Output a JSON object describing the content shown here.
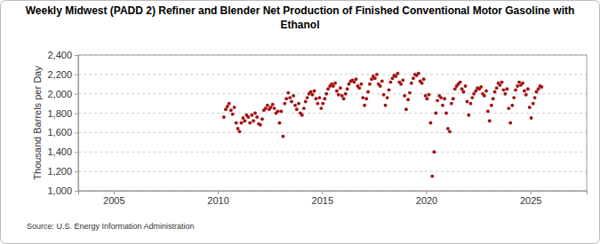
{
  "chart_data": {
    "type": "scatter",
    "title": "Weekly Midwest (PADD 2) Refiner and Blender Net Production of Finished Conventional Motor Gasoline with Ethanol",
    "y_label": "Thousand Barrels per Day",
    "source": "Source: U.S. Energy Information Administration",
    "color": "#a31515",
    "marker": "circle",
    "grid": true,
    "xlim": [
      2003.3,
      2027.7
    ],
    "xticks": [
      2005,
      2010,
      2015,
      2020,
      2025
    ],
    "ylim": [
      1000,
      2400
    ],
    "yticks": [
      {
        "value": 1000,
        "label": "1,000"
      },
      {
        "value": 1200,
        "label": "1,200"
      },
      {
        "value": 1400,
        "label": "1,400"
      },
      {
        "value": 1600,
        "label": "1,600"
      },
      {
        "value": 1800,
        "label": "1,800"
      },
      {
        "value": 2000,
        "label": "2,000"
      },
      {
        "value": 2200,
        "label": "2,200"
      },
      {
        "value": 2400,
        "label": "2,400"
      }
    ],
    "x": [
      2010.29,
      2010.38,
      2010.46,
      2010.54,
      2010.63,
      2010.71,
      2010.79,
      2010.88,
      2010.96,
      2011.04,
      2011.13,
      2011.21,
      2011.29,
      2011.38,
      2011.46,
      2011.54,
      2011.63,
      2011.71,
      2011.79,
      2011.88,
      2011.96,
      2012.04,
      2012.13,
      2012.21,
      2012.29,
      2012.38,
      2012.46,
      2012.54,
      2012.63,
      2012.71,
      2012.79,
      2012.88,
      2012.96,
      2013.04,
      2013.13,
      2013.21,
      2013.29,
      2013.38,
      2013.46,
      2013.54,
      2013.63,
      2013.71,
      2013.79,
      2013.88,
      2013.96,
      2014.04,
      2014.13,
      2014.21,
      2014.29,
      2014.38,
      2014.46,
      2014.54,
      2014.63,
      2014.71,
      2014.79,
      2014.88,
      2014.96,
      2015.04,
      2015.13,
      2015.21,
      2015.29,
      2015.38,
      2015.46,
      2015.54,
      2015.63,
      2015.71,
      2015.79,
      2015.88,
      2015.96,
      2016.04,
      2016.13,
      2016.21,
      2016.29,
      2016.38,
      2016.46,
      2016.54,
      2016.63,
      2016.71,
      2016.79,
      2016.88,
      2016.96,
      2017.04,
      2017.13,
      2017.21,
      2017.29,
      2017.38,
      2017.46,
      2017.54,
      2017.63,
      2017.71,
      2017.79,
      2017.88,
      2017.96,
      2018.04,
      2018.13,
      2018.21,
      2018.29,
      2018.38,
      2018.46,
      2018.54,
      2018.63,
      2018.71,
      2018.79,
      2018.88,
      2018.96,
      2019.04,
      2019.13,
      2019.21,
      2019.29,
      2019.38,
      2019.46,
      2019.54,
      2019.63,
      2019.71,
      2019.79,
      2019.88,
      2019.96,
      2020.04,
      2020.13,
      2020.21,
      2020.29,
      2020.38,
      2020.46,
      2020.54,
      2020.63,
      2020.71,
      2020.79,
      2020.88,
      2020.96,
      2021.04,
      2021.13,
      2021.21,
      2021.29,
      2021.38,
      2021.46,
      2021.54,
      2021.63,
      2021.71,
      2021.79,
      2021.88,
      2021.96,
      2022.04,
      2022.13,
      2022.21,
      2022.29,
      2022.38,
      2022.46,
      2022.54,
      2022.63,
      2022.71,
      2022.79,
      2022.88,
      2022.96,
      2023.04,
      2023.13,
      2023.21,
      2023.29,
      2023.38,
      2023.46,
      2023.54,
      2023.63,
      2023.71,
      2023.79,
      2023.88,
      2023.96,
      2024.04,
      2024.13,
      2024.21,
      2024.29,
      2024.38,
      2024.46,
      2024.54,
      2024.63,
      2024.71,
      2024.79,
      2024.88,
      2024.96,
      2025.04,
      2025.13,
      2025.21,
      2025.29,
      2025.38,
      2025.46,
      2025.54
    ],
    "values": [
      1760,
      1840,
      1870,
      1900,
      1830,
      1790,
      1860,
      1700,
      1640,
      1610,
      1700,
      1750,
      1720,
      1780,
      1760,
      1700,
      1780,
      1720,
      1800,
      1760,
      1690,
      1680,
      1740,
      1830,
      1850,
      1880,
      1840,
      1860,
      1890,
      1850,
      1800,
      1820,
      1700,
      1820,
      1560,
      1900,
      1950,
      2010,
      1960,
      1920,
      1980,
      1880,
      1840,
      1900,
      1800,
      1780,
      1850,
      1920,
      1960,
      2000,
      2020,
      1990,
      2030,
      1950,
      1900,
      1960,
      1850,
      1900,
      1950,
      2000,
      2050,
      2080,
      2100,
      2080,
      2110,
      2030,
      1990,
      2060,
      1980,
      1950,
      2000,
      2050,
      2100,
      2130,
      2140,
      2120,
      2150,
      2080,
      2060,
      2100,
      1960,
      1880,
      1950,
      2020,
      2100,
      2150,
      2180,
      2160,
      2200,
      2100,
      2080,
      2130,
      1990,
      1880,
      1960,
      2040,
      2120,
      2160,
      2190,
      2180,
      2210,
      2120,
      2100,
      2140,
      1980,
      1840,
      1940,
      2010,
      2110,
      2160,
      2200,
      2190,
      2210,
      2130,
      2110,
      2150,
      1980,
      1950,
      1990,
      1700,
      1150,
      1400,
      1800,
      1930,
      1980,
      1960,
      1880,
      1950,
      1800,
      1640,
      1610,
      1900,
      1950,
      2050,
      2080,
      2100,
      2120,
      2050,
      2020,
      2080,
      1920,
      1780,
      1900,
      1960,
      2000,
      2030,
      2060,
      2050,
      2070,
      2000,
      1980,
      2030,
      1820,
      1720,
      1880,
      1950,
      2020,
      2060,
      2110,
      2090,
      2120,
      2040,
      2000,
      2050,
      1850,
      1700,
      1880,
      1960,
      2040,
      2080,
      2120,
      2090,
      2110,
      2030,
      1990,
      2050,
      1860,
      1750,
      1900,
      1960,
      2020,
      2050,
      2080,
      2070
    ]
  }
}
